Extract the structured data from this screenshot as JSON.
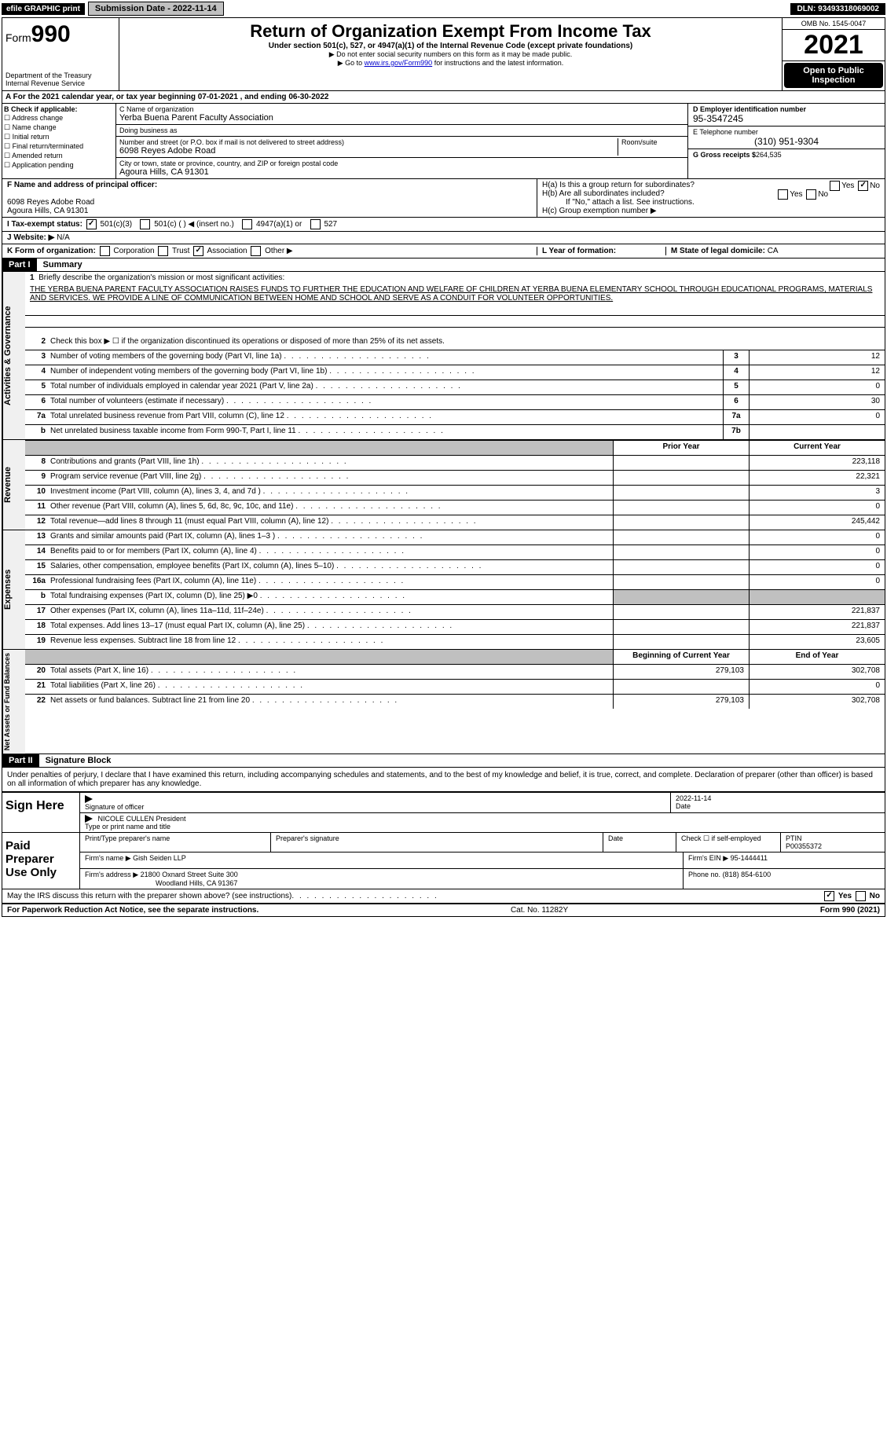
{
  "topbar": {
    "efile": "efile GRAPHIC print",
    "sub_label": "Submission Date - 2022-11-14",
    "dln": "DLN: 93493318069002"
  },
  "header": {
    "form_prefix": "Form",
    "form_num": "990",
    "title": "Return of Organization Exempt From Income Tax",
    "sub": "Under section 501(c), 527, or 4947(a)(1) of the Internal Revenue Code (except private foundations)",
    "note1": "▶ Do not enter social security numbers on this form as it may be made public.",
    "note2_pre": "▶ Go to ",
    "note2_link": "www.irs.gov/Form990",
    "note2_post": " for instructions and the latest information.",
    "dept": "Department of the Treasury",
    "irs": "Internal Revenue Service",
    "omb": "OMB No. 1545-0047",
    "year": "2021",
    "inspection": "Open to Public Inspection"
  },
  "row_a": "A For the 2021 calendar year, or tax year beginning 07-01-2021   , and ending 06-30-2022",
  "col_b": {
    "title": "B Check if applicable:",
    "items": [
      "Address change",
      "Name change",
      "Initial return",
      "Final return/terminated",
      "Amended return",
      "Application pending"
    ]
  },
  "col_c": {
    "name_label": "C Name of organization",
    "name": "Yerba Buena Parent Faculty Association",
    "dba_label": "Doing business as",
    "dba": "",
    "street_label": "Number and street (or P.O. box if mail is not delivered to street address)",
    "room_label": "Room/suite",
    "street": "6098 Reyes Adobe Road",
    "city_label": "City or town, state or province, country, and ZIP or foreign postal code",
    "city": "Agoura Hills, CA  91301"
  },
  "col_d": {
    "ein_label": "D Employer identification number",
    "ein": "95-3547245",
    "tel_label": "E Telephone number",
    "tel": "(310) 951-9304",
    "gross_label": "G Gross receipts $",
    "gross": "264,535"
  },
  "row_f": {
    "label": "F Name and address of principal officer:",
    "addr1": "6098 Reyes Adobe Road",
    "addr2": "Agoura Hills, CA  91301"
  },
  "row_h": {
    "ha": "H(a)  Is this a group return for subordinates?",
    "hb": "H(b)  Are all subordinates included?",
    "hb_note": "If \"No,\" attach a list. See instructions.",
    "hc": "H(c)  Group exemption number ▶"
  },
  "row_i": {
    "label": "I   Tax-exempt status:",
    "opts": [
      "501(c)(3)",
      "501(c) (   ) ◀ (insert no.)",
      "4947(a)(1) or",
      "527"
    ]
  },
  "row_j": {
    "label": "J   Website: ▶",
    "val": "N/A"
  },
  "row_k": {
    "label": "K Form of organization:",
    "opts": [
      "Corporation",
      "Trust",
      "Association",
      "Other ▶"
    ]
  },
  "row_l": {
    "label": "L Year of formation:",
    "m_label": "M State of legal domicile:",
    "m_val": "CA"
  },
  "part1": {
    "hdr": "Part I",
    "title": "Summary"
  },
  "summary": {
    "line1_label": "Briefly describe the organization's mission or most significant activities:",
    "mission": "THE YERBA BUENA PARENT FACULTY ASSOCIATION RAISES FUNDS TO FURTHER THE EDUCATION AND WELFARE OF CHILDREN AT YERBA BUENA ELEMENTARY SCHOOL THROUGH EDUCATIONAL PROGRAMS, MATERIALS AND SERVICES. WE PROVIDE A LINE OF COMMUNICATION BETWEEN HOME AND SCHOOL AND SERVE AS A CONDUIT FOR VOLUNTEER OPPORTUNITIES.",
    "line2": "Check this box ▶ ☐ if the organization discontinued its operations or disposed of more than 25% of its net assets.",
    "lines": [
      {
        "n": "3",
        "d": "Number of voting members of the governing body (Part VI, line 1a)",
        "box": "3",
        "v": "12"
      },
      {
        "n": "4",
        "d": "Number of independent voting members of the governing body (Part VI, line 1b)",
        "box": "4",
        "v": "12"
      },
      {
        "n": "5",
        "d": "Total number of individuals employed in calendar year 2021 (Part V, line 2a)",
        "box": "5",
        "v": "0"
      },
      {
        "n": "6",
        "d": "Total number of volunteers (estimate if necessary)",
        "box": "6",
        "v": "30"
      },
      {
        "n": "7a",
        "d": "Total unrelated business revenue from Part VIII, column (C), line 12",
        "box": "7a",
        "v": "0"
      },
      {
        "n": "b",
        "d": "Net unrelated business taxable income from Form 990-T, Part I, line 11",
        "box": "7b",
        "v": ""
      }
    ]
  },
  "twocol_hdr": {
    "prior": "Prior Year",
    "curr": "Current Year"
  },
  "revenue": [
    {
      "n": "8",
      "d": "Contributions and grants (Part VIII, line 1h)",
      "p": "",
      "c": "223,118"
    },
    {
      "n": "9",
      "d": "Program service revenue (Part VIII, line 2g)",
      "p": "",
      "c": "22,321"
    },
    {
      "n": "10",
      "d": "Investment income (Part VIII, column (A), lines 3, 4, and 7d )",
      "p": "",
      "c": "3"
    },
    {
      "n": "11",
      "d": "Other revenue (Part VIII, column (A), lines 5, 6d, 8c, 9c, 10c, and 11e)",
      "p": "",
      "c": "0"
    },
    {
      "n": "12",
      "d": "Total revenue—add lines 8 through 11 (must equal Part VIII, column (A), line 12)",
      "p": "",
      "c": "245,442"
    }
  ],
  "expenses": [
    {
      "n": "13",
      "d": "Grants and similar amounts paid (Part IX, column (A), lines 1–3 )",
      "p": "",
      "c": "0"
    },
    {
      "n": "14",
      "d": "Benefits paid to or for members (Part IX, column (A), line 4)",
      "p": "",
      "c": "0"
    },
    {
      "n": "15",
      "d": "Salaries, other compensation, employee benefits (Part IX, column (A), lines 5–10)",
      "p": "",
      "c": "0"
    },
    {
      "n": "16a",
      "d": "Professional fundraising fees (Part IX, column (A), line 11e)",
      "p": "",
      "c": "0"
    },
    {
      "n": "b",
      "d": "Total fundraising expenses (Part IX, column (D), line 25) ▶0",
      "p": "GREY",
      "c": "GREY"
    },
    {
      "n": "17",
      "d": "Other expenses (Part IX, column (A), lines 11a–11d, 11f–24e)",
      "p": "",
      "c": "221,837"
    },
    {
      "n": "18",
      "d": "Total expenses. Add lines 13–17 (must equal Part IX, column (A), line 25)",
      "p": "",
      "c": "221,837"
    },
    {
      "n": "19",
      "d": "Revenue less expenses. Subtract line 18 from line 12",
      "p": "",
      "c": "23,605"
    }
  ],
  "netassets_hdr": {
    "prior": "Beginning of Current Year",
    "curr": "End of Year"
  },
  "netassets": [
    {
      "n": "20",
      "d": "Total assets (Part X, line 16)",
      "p": "279,103",
      "c": "302,708"
    },
    {
      "n": "21",
      "d": "Total liabilities (Part X, line 26)",
      "p": "",
      "c": "0"
    },
    {
      "n": "22",
      "d": "Net assets or fund balances. Subtract line 21 from line 20",
      "p": "279,103",
      "c": "302,708"
    }
  ],
  "part2": {
    "hdr": "Part II",
    "title": "Signature Block",
    "decl": "Under penalties of perjury, I declare that I have examined this return, including accompanying schedules and statements, and to the best of my knowledge and belief, it is true, correct, and complete. Declaration of preparer (other than officer) is based on all information of which preparer has any knowledge."
  },
  "sign": {
    "label": "Sign Here",
    "sig_officer": "Signature of officer",
    "date": "Date",
    "date_val": "2022-11-14",
    "name": "NICOLE CULLEN President",
    "name_label": "Type or print name and title"
  },
  "preparer": {
    "label": "Paid Preparer Use Only",
    "print_label": "Print/Type preparer's name",
    "sig_label": "Preparer's signature",
    "date_label": "Date",
    "check_label": "Check ☐ if self-employed",
    "ptin_label": "PTIN",
    "ptin": "P00355372",
    "firm_name_label": "Firm's name    ▶",
    "firm_name": "Gish Seiden LLP",
    "firm_ein_label": "Firm's EIN ▶",
    "firm_ein": "95-1444411",
    "firm_addr_label": "Firm's address ▶",
    "firm_addr1": "21800 Oxnard Street Suite 300",
    "firm_addr2": "Woodland Hills, CA  91367",
    "phone_label": "Phone no.",
    "phone": "(818) 854-6100"
  },
  "discuss": "May the IRS discuss this return with the preparer shown above? (see instructions)",
  "footer": {
    "left": "For Paperwork Reduction Act Notice, see the separate instructions.",
    "mid": "Cat. No. 11282Y",
    "right": "Form 990 (2021)"
  },
  "vtabs": {
    "gov": "Activities & Governance",
    "rev": "Revenue",
    "exp": "Expenses",
    "net": "Net Assets or Fund Balances"
  }
}
